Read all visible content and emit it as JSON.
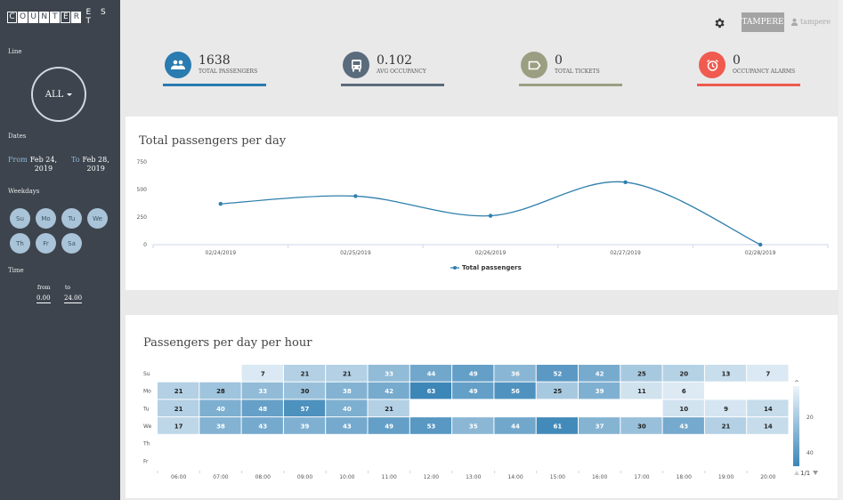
{
  "brand": {
    "boxed": [
      "C",
      "O",
      "U",
      "N",
      "T",
      "E",
      "R"
    ],
    "plain": "E S T"
  },
  "sidebar": {
    "line_label": "Line",
    "line_value": "ALL",
    "dates_label": "Dates",
    "from_label": "From",
    "from_value_1": "Feb 24,",
    "from_value_2": "2019",
    "to_label": "To",
    "to_value_1": "Feb 28,",
    "to_value_2": "2019",
    "weekdays_label": "Weekdays",
    "weekdays": [
      "Su",
      "Mo",
      "Tu",
      "We",
      "Th",
      "Fr",
      "Sa"
    ],
    "time_label": "Time",
    "time_from_label": "from",
    "time_to_label": "to",
    "time_from_value": "0.00",
    "time_to_value": "24.00"
  },
  "header": {
    "city_button": "TAMPERE",
    "user_name": "tampere",
    "settings_icon": "gear-icon",
    "user_icon": "user-icon"
  },
  "kpis": [
    {
      "value": "1638",
      "label": "TOTAL PASSENGERS",
      "color": "#2a7bb0",
      "icon": "people-icon"
    },
    {
      "value": "0.102",
      "label": "AVG OCCUPANCY",
      "color": "#5a6b7c",
      "icon": "bus-icon"
    },
    {
      "value": "0",
      "label": "TOTAL TICKETS",
      "color": "#9b9e81",
      "icon": "ticket-icon"
    },
    {
      "value": "0",
      "label": "OCCUPANCY ALARMS",
      "color": "#f05a4f",
      "icon": "alarm-icon"
    }
  ],
  "chart_data": [
    {
      "type": "line",
      "title": "Total passengers per day",
      "x": [
        "02/24/2019",
        "02/25/2019",
        "02/26/2019",
        "02/27/2019",
        "02/28/2019"
      ],
      "series": [
        {
          "name": "Total passengers",
          "values": [
            370,
            440,
            262,
            566,
            0
          ]
        }
      ],
      "ylim": [
        0,
        750
      ],
      "yticks": [
        "0",
        "250",
        "500",
        "750"
      ],
      "legend_position": "bottom-center",
      "color": "#2f7fad",
      "grid": false
    },
    {
      "type": "heatmap",
      "title": "Passengers per day per hour",
      "rows": [
        "Su",
        "Mo",
        "Tu",
        "We",
        "Th",
        "Fr"
      ],
      "columns": [
        "06:00",
        "07:00",
        "08:00",
        "09:00",
        "10:00",
        "11:00",
        "12:00",
        "13:00",
        "14:00",
        "15:00",
        "16:00",
        "17:00",
        "18:00",
        "19:00",
        "20:00"
      ],
      "values": [
        [
          null,
          null,
          7,
          21,
          21,
          33,
          44,
          49,
          36,
          52,
          42,
          25,
          20,
          13,
          7
        ],
        [
          21,
          28,
          33,
          30,
          38,
          42,
          63,
          49,
          56,
          25,
          39,
          11,
          6,
          null,
          null
        ],
        [
          21,
          40,
          48,
          57,
          40,
          21,
          null,
          null,
          null,
          null,
          null,
          null,
          10,
          9,
          14
        ],
        [
          17,
          38,
          43,
          39,
          43,
          49,
          53,
          35,
          44,
          61,
          37,
          30,
          43,
          21,
          14
        ],
        [
          null,
          null,
          null,
          null,
          null,
          null,
          null,
          null,
          null,
          null,
          null,
          null,
          null,
          null,
          null
        ],
        [
          null,
          null,
          null,
          null,
          null,
          null,
          null,
          null,
          null,
          null,
          null,
          null,
          null,
          null,
          null
        ]
      ],
      "color_scale_ticks": [
        "20",
        "40"
      ],
      "legend_pager": "1/1",
      "color_range": [
        "#eef5fa",
        "#3c86b8"
      ]
    }
  ]
}
